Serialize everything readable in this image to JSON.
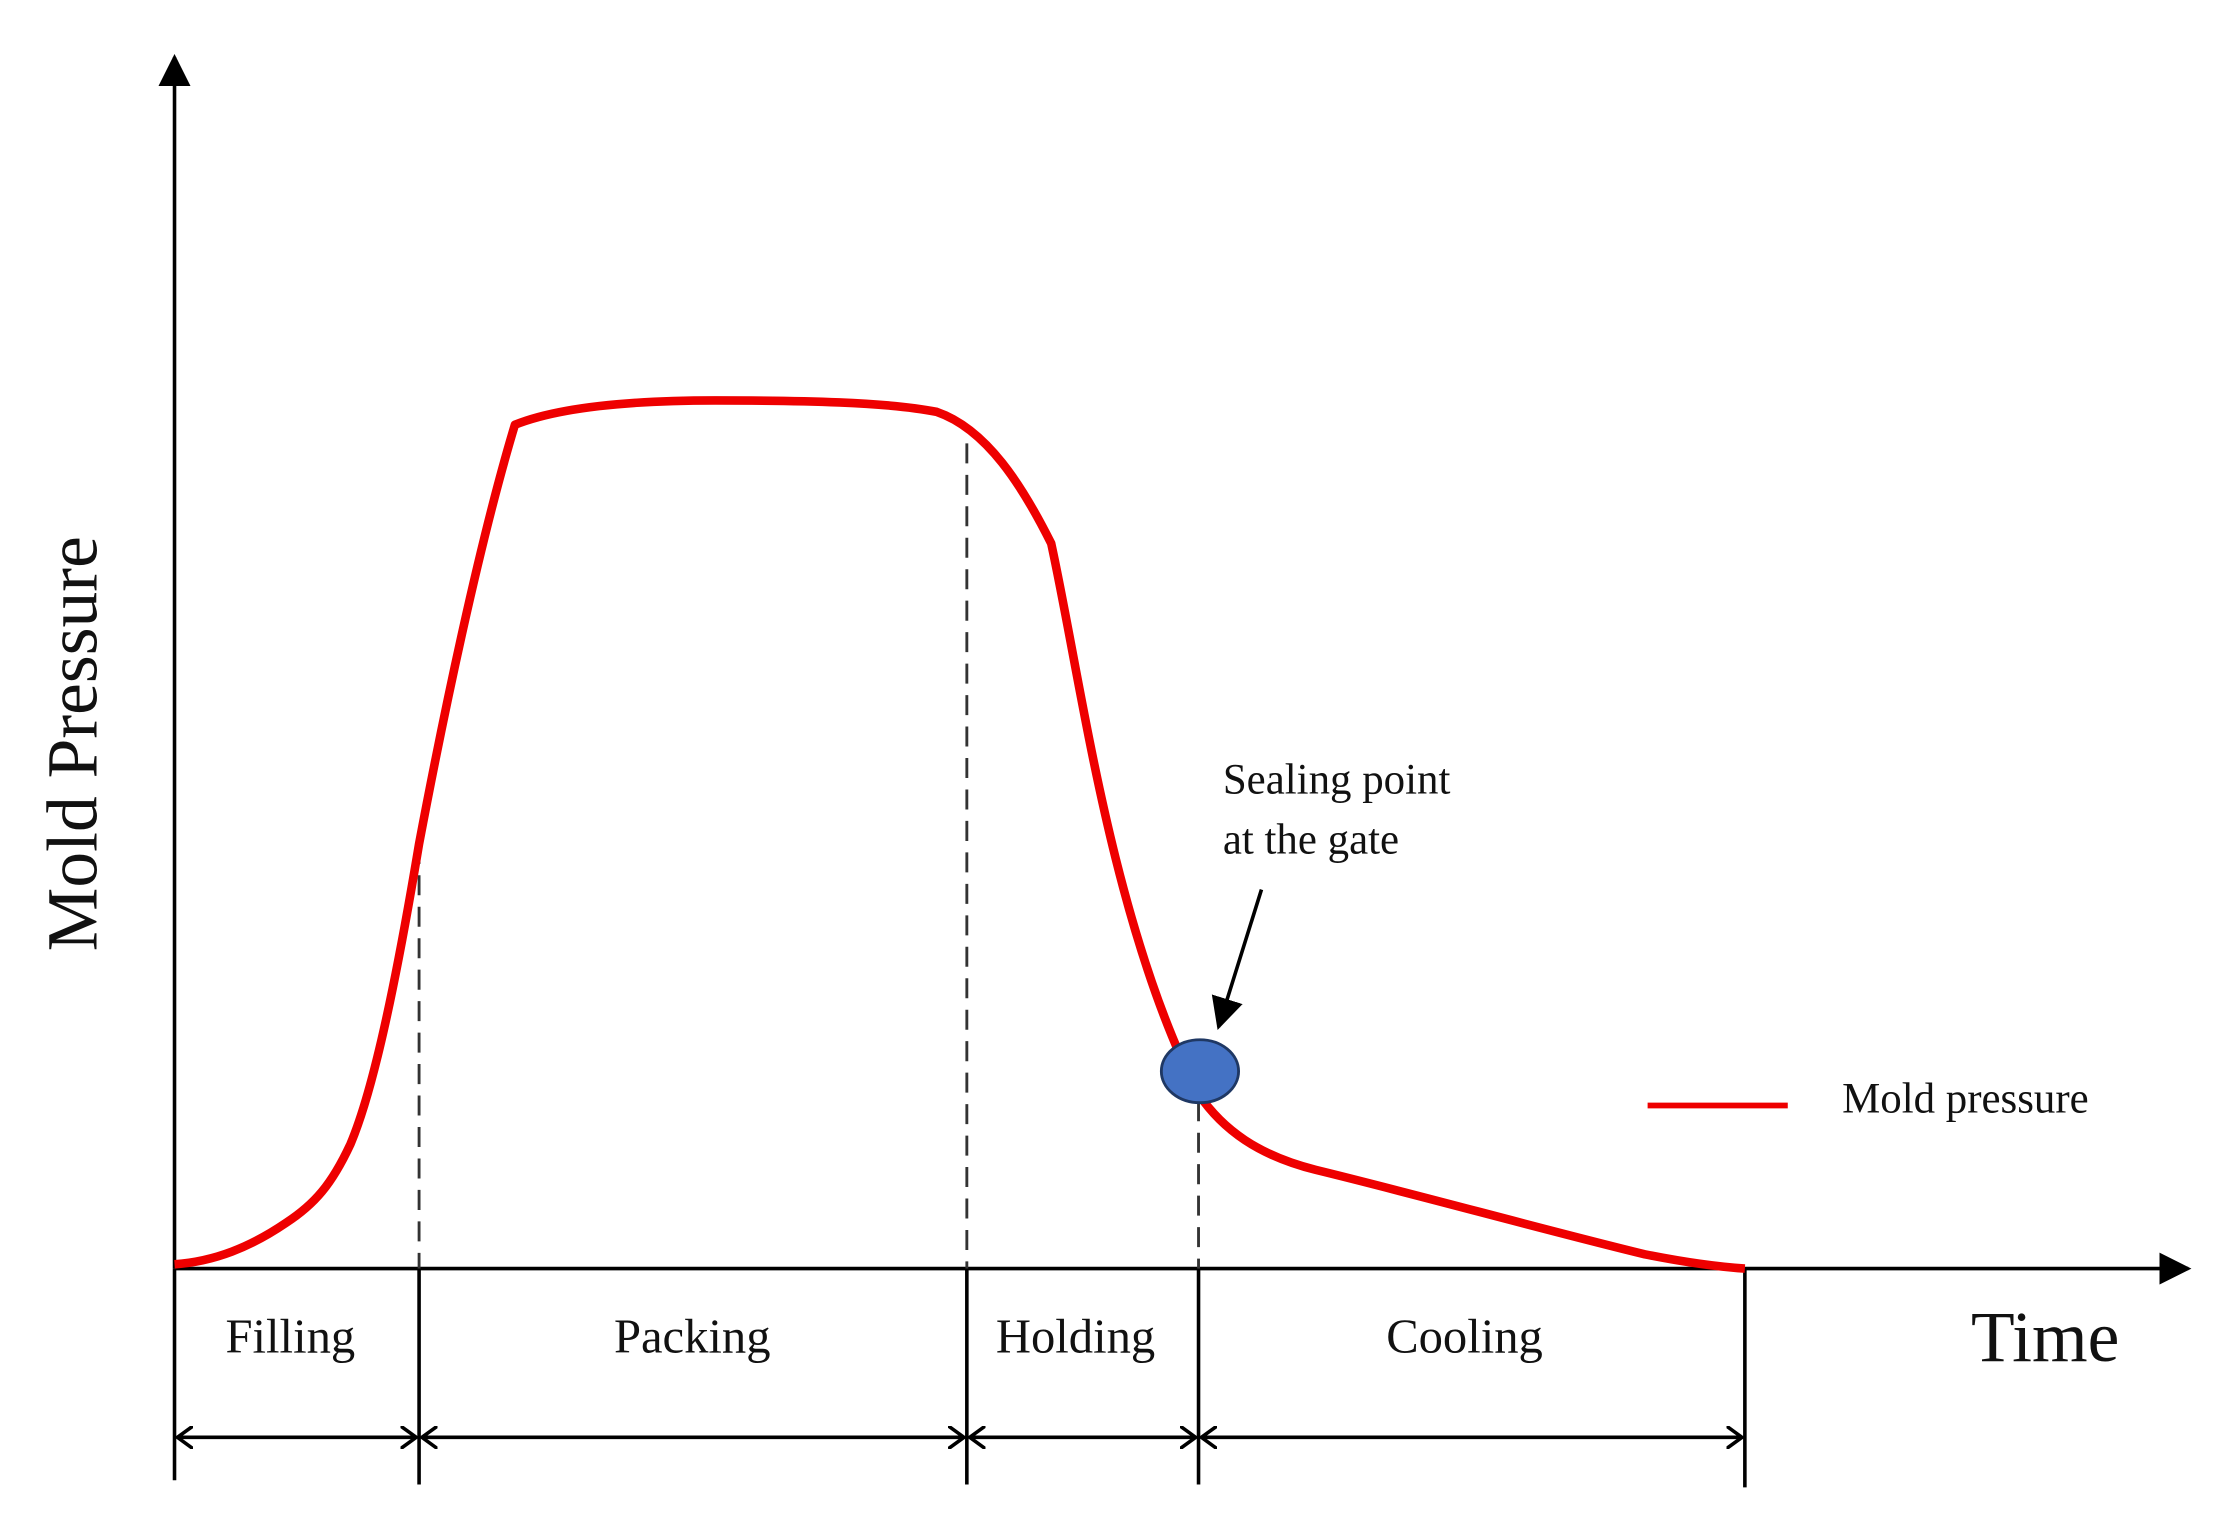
{
  "axes": {
    "y_label": "Mold Pressure",
    "x_label": "Time"
  },
  "phases": [
    "Filling",
    "Packing",
    "Holding",
    "Cooling"
  ],
  "annotation": {
    "lines": [
      "Sealing point",
      "at the gate"
    ]
  },
  "legend": {
    "label": "Mold pressure"
  }
}
